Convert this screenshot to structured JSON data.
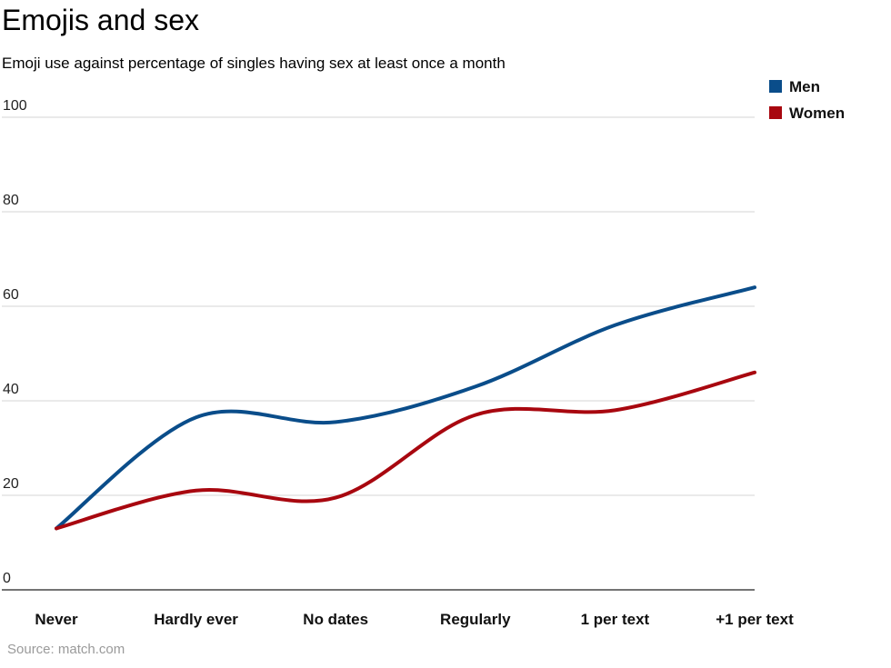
{
  "title": "Emojis and sex",
  "subtitle": "Emoji use against percentage of singles having sex at least once a month",
  "source": "Source: match.com",
  "chart_data": {
    "type": "line",
    "categories": [
      "Never",
      "Hardly ever",
      "No dates",
      "Regularly",
      "1 per text",
      "+1 per text"
    ],
    "series": [
      {
        "name": "Men",
        "color": "#0a4d8a",
        "values": [
          13,
          36.5,
          35.5,
          43,
          56,
          64
        ]
      },
      {
        "name": "Women",
        "color": "#a8070f",
        "values": [
          13,
          21,
          19.5,
          37,
          38,
          46
        ]
      }
    ],
    "yticks": [
      "100",
      "80",
      "60",
      "40",
      "20",
      "0"
    ],
    "ylim": [
      0,
      100
    ],
    "grid": true,
    "legend": "top-right"
  }
}
